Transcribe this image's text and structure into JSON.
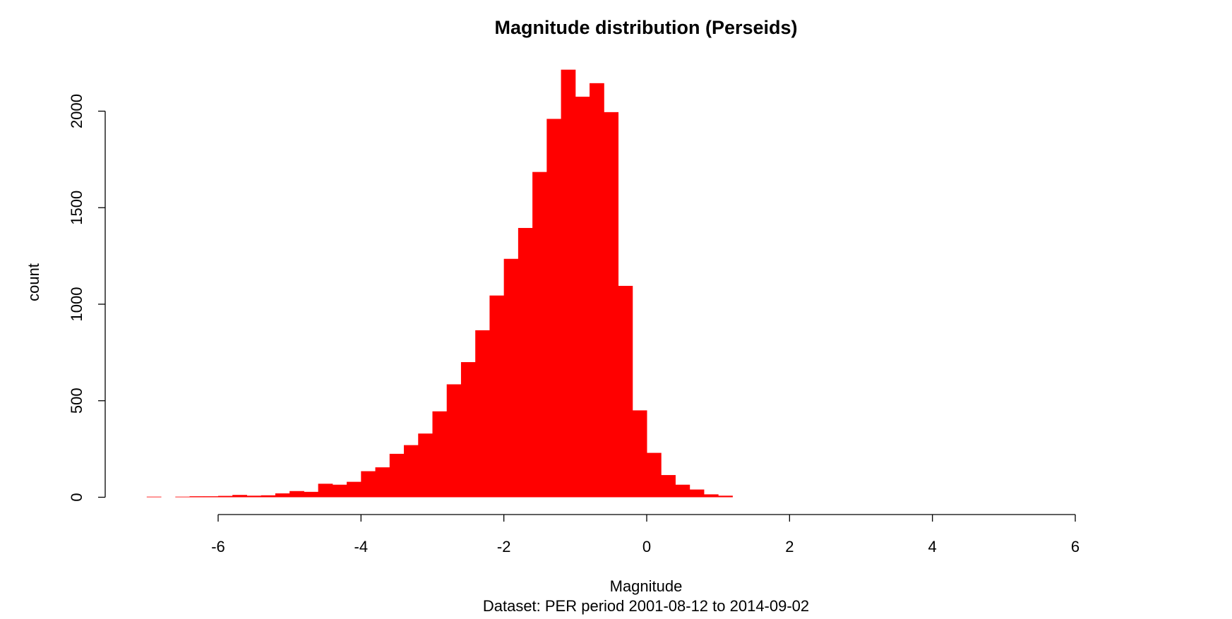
{
  "chart_data": {
    "type": "bar",
    "title": "Magnitude distribution (Perseids)",
    "subtitle": "Dataset: PER period 2001-08-12 to 2014-09-02",
    "xlabel": "Magnitude",
    "ylabel": "count",
    "bar_color": "#ff0000",
    "xlim": [
      -6,
      6
    ],
    "ylim": [
      0,
      2000
    ],
    "x_ticks": [
      -6,
      -4,
      -2,
      0,
      2,
      4,
      6
    ],
    "y_ticks": [
      0,
      500,
      1000,
      1500,
      2000
    ],
    "x_tick_labels": [
      "-6",
      "-4",
      "-2",
      "0",
      "2",
      "4",
      "6"
    ],
    "y_tick_labels": [
      "0",
      "500",
      "1000",
      "1500",
      "2000"
    ],
    "bin_width": 0.2,
    "bin_starts": [
      -7.0,
      -6.8,
      -6.6,
      -6.4,
      -6.2,
      -6.0,
      -5.8,
      -5.6,
      -5.4,
      -5.2,
      -5.0,
      -4.8,
      -4.6,
      -4.4,
      -4.2,
      -4.0,
      -3.8,
      -3.6,
      -3.4,
      -3.2,
      -3.0,
      -2.8,
      -2.6,
      -2.4,
      -2.2,
      -2.0,
      -1.8,
      -1.6,
      -1.4,
      -1.2,
      -1.0,
      -0.8,
      -0.6,
      -0.4,
      -0.2,
      0.0,
      0.2,
      0.4,
      0.6,
      0.8,
      1.0
    ],
    "counts": [
      3,
      0,
      3,
      5,
      5,
      7,
      12,
      8,
      10,
      20,
      32,
      28,
      70,
      65,
      80,
      135,
      155,
      225,
      270,
      330,
      445,
      585,
      700,
      865,
      1045,
      1235,
      1395,
      1685,
      1960,
      2215,
      2075,
      2145,
      1995,
      1095,
      450,
      230,
      115,
      65,
      40,
      15,
      8
    ]
  }
}
